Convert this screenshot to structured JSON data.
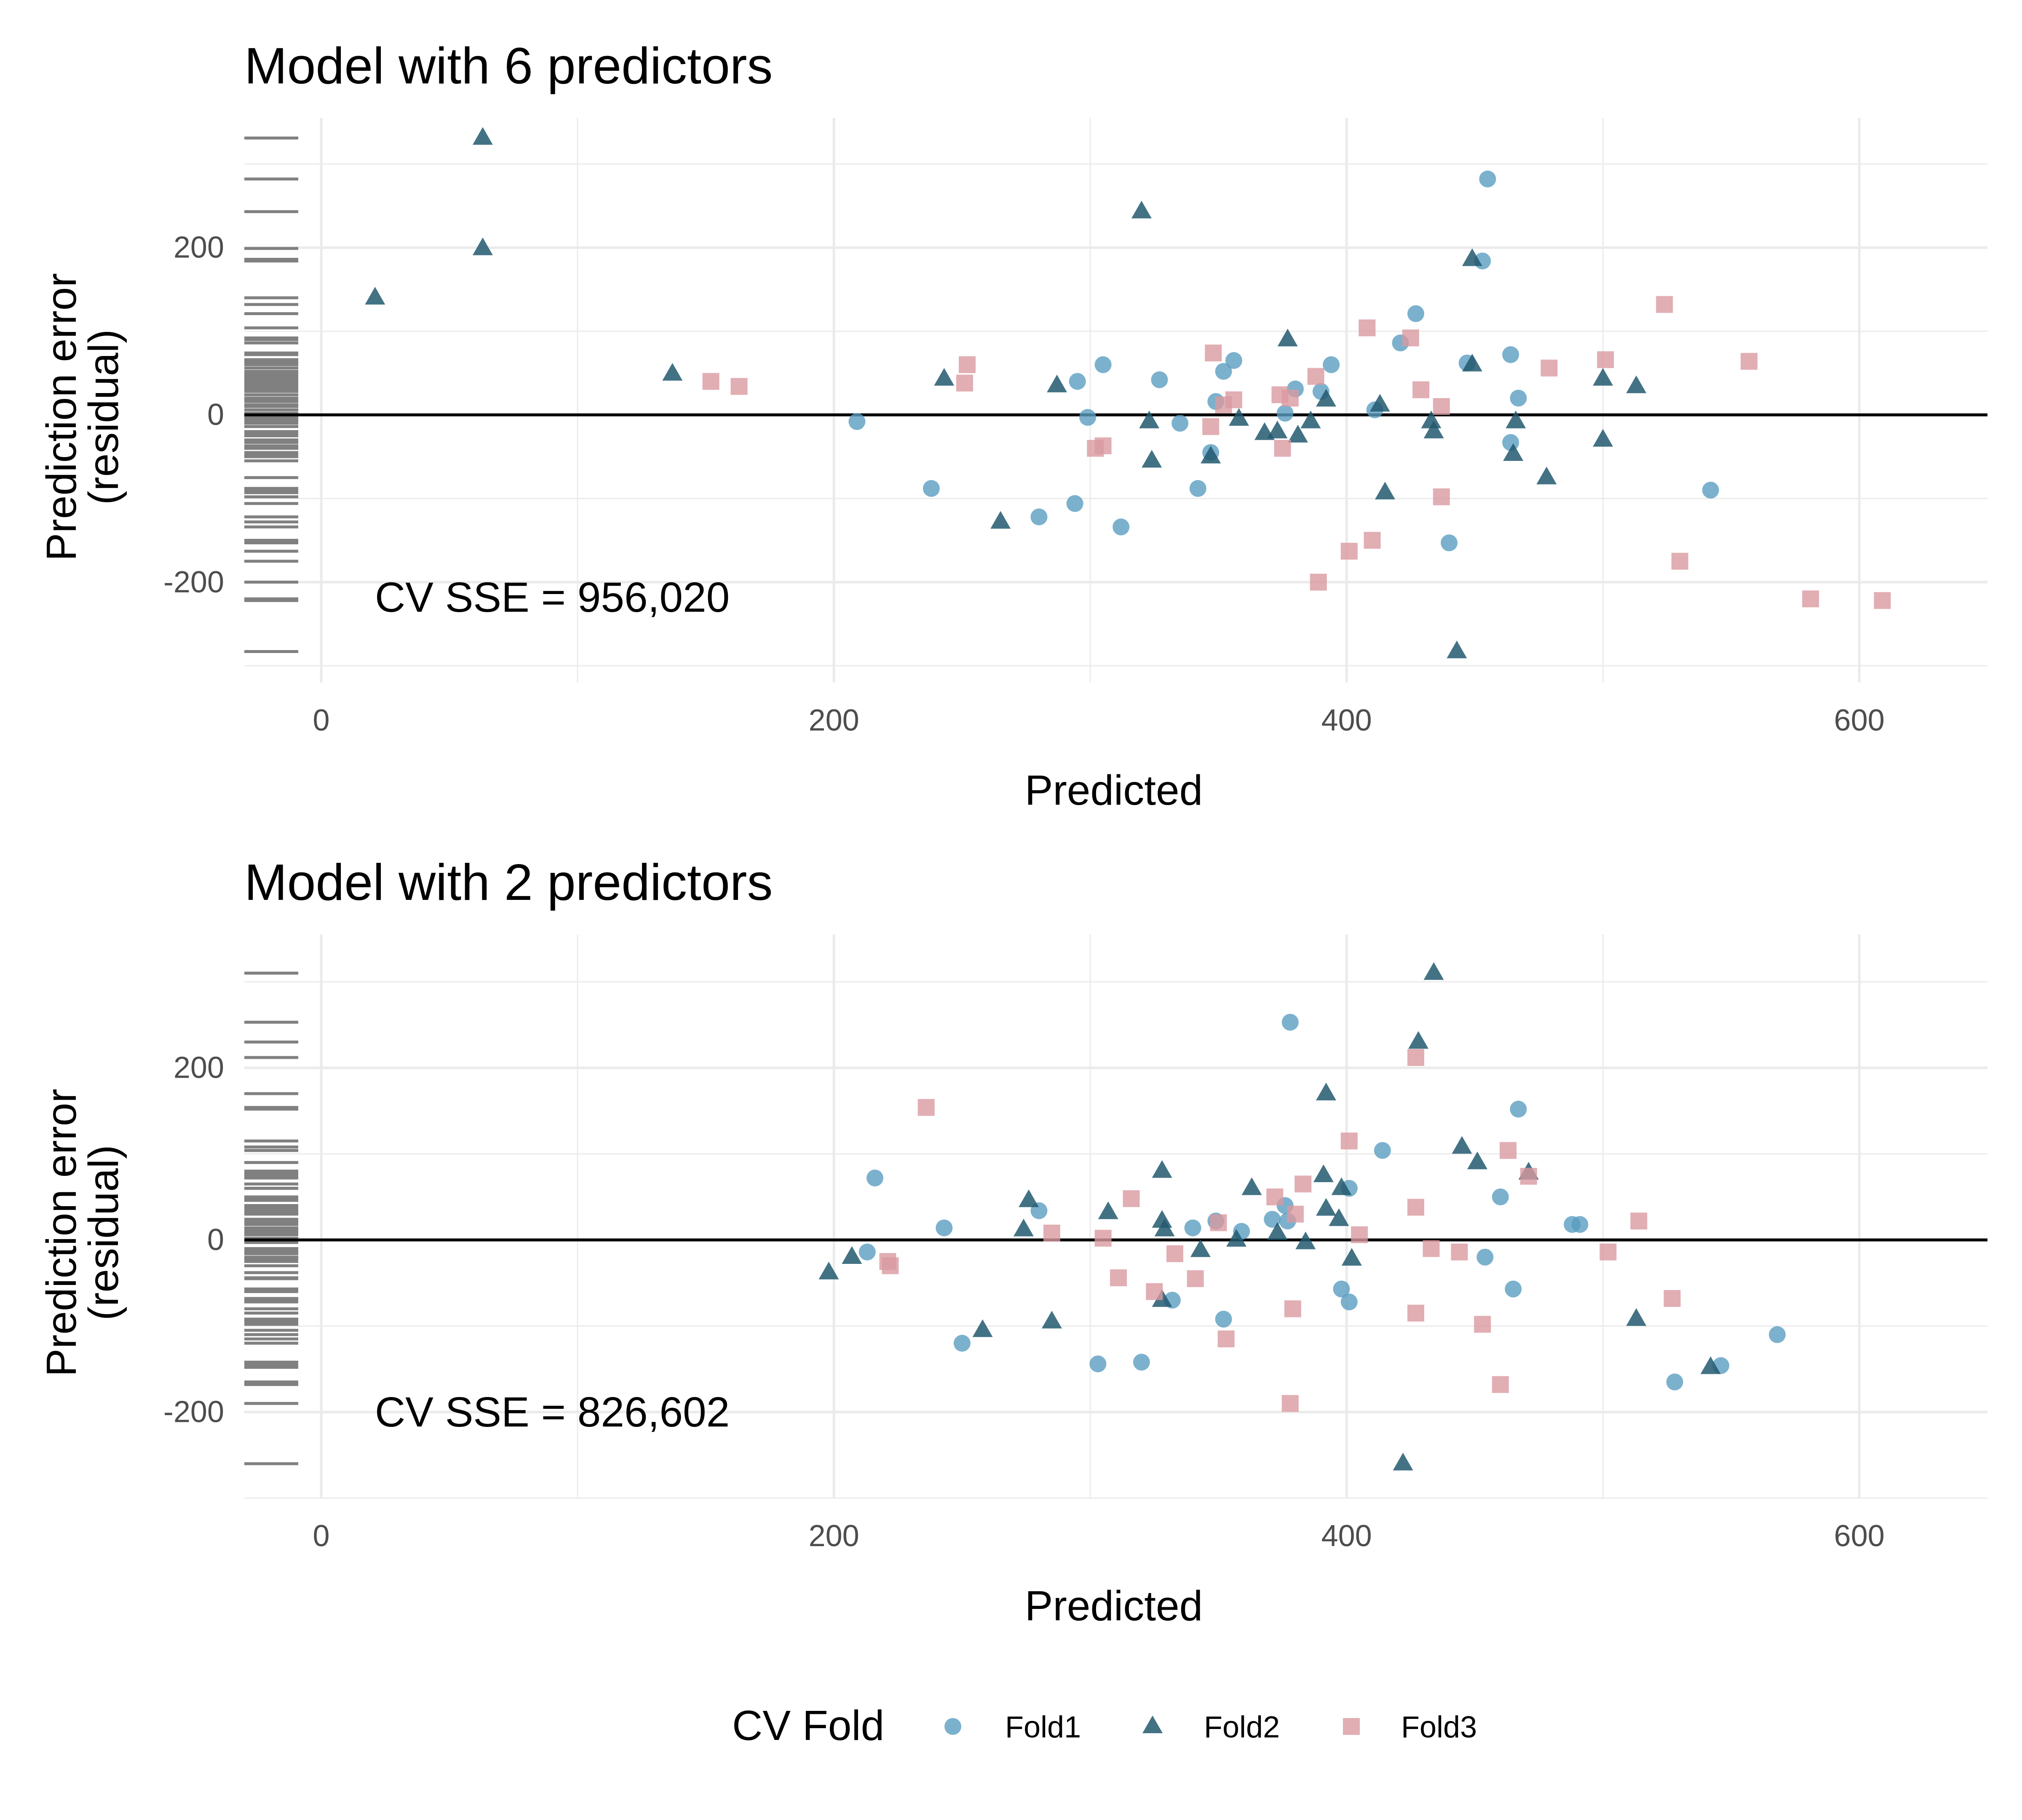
{
  "chart_data": [
    {
      "type": "scatter",
      "title": "Model with 6 predictors",
      "xlabel": "Predicted",
      "ylabel": [
        "Prediction error",
        "(residual)"
      ],
      "xlim": [
        -30,
        650
      ],
      "ylim": [
        -320,
        355
      ],
      "x_ticks": [
        0,
        200,
        400,
        600
      ],
      "x_tick_labels": [
        "0",
        "200",
        "400",
        "600"
      ],
      "y_ticks": [
        -200,
        0,
        200
      ],
      "y_tick_labels": [
        "-200",
        "0",
        "200"
      ],
      "grid": true,
      "reference_line_y": 0,
      "annotation": {
        "text": "CV SSE = 956,020",
        "x": 20,
        "y": -200
      },
      "series": [
        {
          "name": "Fold1",
          "marker": "circle",
          "points": [
            [
              455,
              282
            ],
            [
              453,
              184
            ],
            [
              427,
              121
            ],
            [
              421,
              86
            ],
            [
              464,
              72
            ],
            [
              447,
              62
            ],
            [
              394,
              60
            ],
            [
              356,
              65
            ],
            [
              305,
              60
            ],
            [
              352,
              52
            ],
            [
              327,
              42
            ],
            [
              295,
              40
            ],
            [
              390,
              28
            ],
            [
              380,
              31
            ],
            [
              467,
              20
            ],
            [
              349,
              16
            ],
            [
              411,
              6
            ],
            [
              376,
              2
            ],
            [
              299,
              -3
            ],
            [
              209,
              -8
            ],
            [
              335,
              -10
            ],
            [
              347,
              -45
            ],
            [
              464,
              -33
            ],
            [
              238,
              -88
            ],
            [
              342,
              -88
            ],
            [
              294,
              -106
            ],
            [
              280,
              -122
            ],
            [
              312,
              -134
            ],
            [
              440,
              -153
            ],
            [
              542,
              -90
            ]
          ]
        },
        {
          "name": "Fold2",
          "marker": "triangle",
          "points": [
            [
              63,
              331
            ],
            [
              63,
              199
            ],
            [
              21,
              140
            ],
            [
              320,
              243
            ],
            [
              449,
              186
            ],
            [
              137,
              49
            ],
            [
              243,
              43
            ],
            [
              287,
              35
            ],
            [
              377,
              90
            ],
            [
              449,
              60
            ],
            [
              413,
              12
            ],
            [
              392,
              18
            ],
            [
              500,
              43
            ],
            [
              513,
              34
            ],
            [
              323,
              -8
            ],
            [
              358,
              -5
            ],
            [
              386,
              -8
            ],
            [
              433,
              -8
            ],
            [
              466,
              -8
            ],
            [
              368,
              -22
            ],
            [
              381,
              -25
            ],
            [
              373,
              -20
            ],
            [
              434,
              -20
            ],
            [
              500,
              -30
            ],
            [
              324,
              -55
            ],
            [
              347,
              -50
            ],
            [
              465,
              -47
            ],
            [
              478,
              -75
            ],
            [
              415,
              -93
            ],
            [
              265,
              -128
            ],
            [
              443,
              -283
            ]
          ]
        },
        {
          "name": "Fold3",
          "marker": "square",
          "points": [
            [
              152,
              40
            ],
            [
              163,
              34
            ],
            [
              252,
              60
            ],
            [
              251,
              38
            ],
            [
              348,
              74
            ],
            [
              408,
              104
            ],
            [
              425,
              92
            ],
            [
              524,
              132
            ],
            [
              557,
              64
            ],
            [
              501,
              66
            ],
            [
              479,
              56
            ],
            [
              388,
              46
            ],
            [
              429,
              30
            ],
            [
              437,
              10
            ],
            [
              374,
              24
            ],
            [
              378,
              20
            ],
            [
              356,
              18
            ],
            [
              352,
              12
            ],
            [
              347,
              -14
            ],
            [
              375,
              -40
            ],
            [
              302,
              -40
            ],
            [
              305,
              -37
            ],
            [
              437,
              -98
            ],
            [
              410,
              -150
            ],
            [
              401,
              -163
            ],
            [
              389,
              -200
            ],
            [
              530,
              -175
            ],
            [
              581,
              -220
            ],
            [
              609,
              -222
            ]
          ]
        }
      ]
    },
    {
      "type": "scatter",
      "title": "Model with 2 predictors",
      "xlabel": "Predicted",
      "ylabel": [
        "Prediction error",
        "(residual)"
      ],
      "xlim": [
        -30,
        650
      ],
      "ylim": [
        -300,
        355
      ],
      "x_ticks": [
        0,
        200,
        400,
        600
      ],
      "x_tick_labels": [
        "0",
        "200",
        "400",
        "600"
      ],
      "y_ticks": [
        -200,
        0,
        200
      ],
      "y_tick_labels": [
        "-200",
        "0",
        "200"
      ],
      "grid": true,
      "reference_line_y": 0,
      "annotation": {
        "text": "CV SSE = 826,602",
        "x": 20,
        "y": -200
      },
      "series": [
        {
          "name": "Fold1",
          "marker": "circle",
          "points": [
            [
              378,
              253
            ],
            [
              467,
              152
            ],
            [
              414,
              104
            ],
            [
              216,
              72
            ],
            [
              401,
              60
            ],
            [
              460,
              50
            ],
            [
              376,
              40
            ],
            [
              280,
              34
            ],
            [
              349,
              22
            ],
            [
              371,
              24
            ],
            [
              377,
              22
            ],
            [
              488,
              18
            ],
            [
              491,
              18
            ],
            [
              243,
              14
            ],
            [
              340,
              14
            ],
            [
              359,
              10
            ],
            [
              213,
              -14
            ],
            [
              398,
              -57
            ],
            [
              465,
              -57
            ],
            [
              454,
              -20
            ],
            [
              332,
              -70
            ],
            [
              401,
              -72
            ],
            [
              250,
              -120
            ],
            [
              352,
              -92
            ],
            [
              303,
              -144
            ],
            [
              320,
              -142
            ],
            [
              528,
              -165
            ],
            [
              546,
              -146
            ],
            [
              568,
              -110
            ]
          ]
        },
        {
          "name": "Fold2",
          "marker": "triangle",
          "points": [
            [
              434,
              310
            ],
            [
              428,
              230
            ],
            [
              392,
              170
            ],
            [
              445,
              108
            ],
            [
              451,
              90
            ],
            [
              328,
              80
            ],
            [
              471,
              78
            ],
            [
              391,
              75
            ],
            [
              398,
              60
            ],
            [
              363,
              60
            ],
            [
              276,
              46
            ],
            [
              392,
              36
            ],
            [
              307,
              32
            ],
            [
              397,
              24
            ],
            [
              328,
              22
            ],
            [
              274,
              12
            ],
            [
              329,
              12
            ],
            [
              373,
              8
            ],
            [
              357,
              0
            ],
            [
              384,
              -3
            ],
            [
              343,
              -12
            ],
            [
              402,
              -22
            ],
            [
              207,
              -20
            ],
            [
              198,
              -38
            ],
            [
              513,
              -92
            ],
            [
              285,
              -95
            ],
            [
              258,
              -105
            ],
            [
              328,
              -70
            ],
            [
              542,
              -148
            ],
            [
              422,
              -260
            ]
          ]
        },
        {
          "name": "Fold3",
          "marker": "square",
          "points": [
            [
              236,
              154
            ],
            [
              427,
              212
            ],
            [
              401,
              115
            ],
            [
              463,
              104
            ],
            [
              471,
              74
            ],
            [
              383,
              65
            ],
            [
              316,
              48
            ],
            [
              372,
              50
            ],
            [
              427,
              38
            ],
            [
              380,
              30
            ],
            [
              514,
              22
            ],
            [
              350,
              20
            ],
            [
              405,
              6
            ],
            [
              285,
              8
            ],
            [
              305,
              2
            ],
            [
              433,
              -10
            ],
            [
              444,
              -14
            ],
            [
              502,
              -14
            ],
            [
              333,
              -16
            ],
            [
              221,
              -25
            ],
            [
              222,
              -30
            ],
            [
              325,
              -60
            ],
            [
              341,
              -45
            ],
            [
              311,
              -44
            ],
            [
              379,
              -80
            ],
            [
              427,
              -85
            ],
            [
              453,
              -98
            ],
            [
              527,
              -68
            ],
            [
              353,
              -115
            ],
            [
              460,
              -168
            ],
            [
              378,
              -190
            ]
          ]
        }
      ]
    }
  ],
  "legend": {
    "title": "CV Fold",
    "position": "bottom",
    "items": [
      {
        "label": "Fold1",
        "marker": "circle",
        "color": "#5A9DC0"
      },
      {
        "label": "Fold2",
        "marker": "triangle",
        "color": "#22596E"
      },
      {
        "label": "Fold3",
        "marker": "square",
        "color": "#D99AA0"
      }
    ]
  },
  "colors": {
    "Fold1": "#5A9DC0",
    "Fold2": "#22596E",
    "Fold3": "#D99AA0",
    "grid": "#EBEBEB",
    "zero_line": "#000000",
    "rug": "#808080",
    "tick_text": "#4D4D4D"
  }
}
